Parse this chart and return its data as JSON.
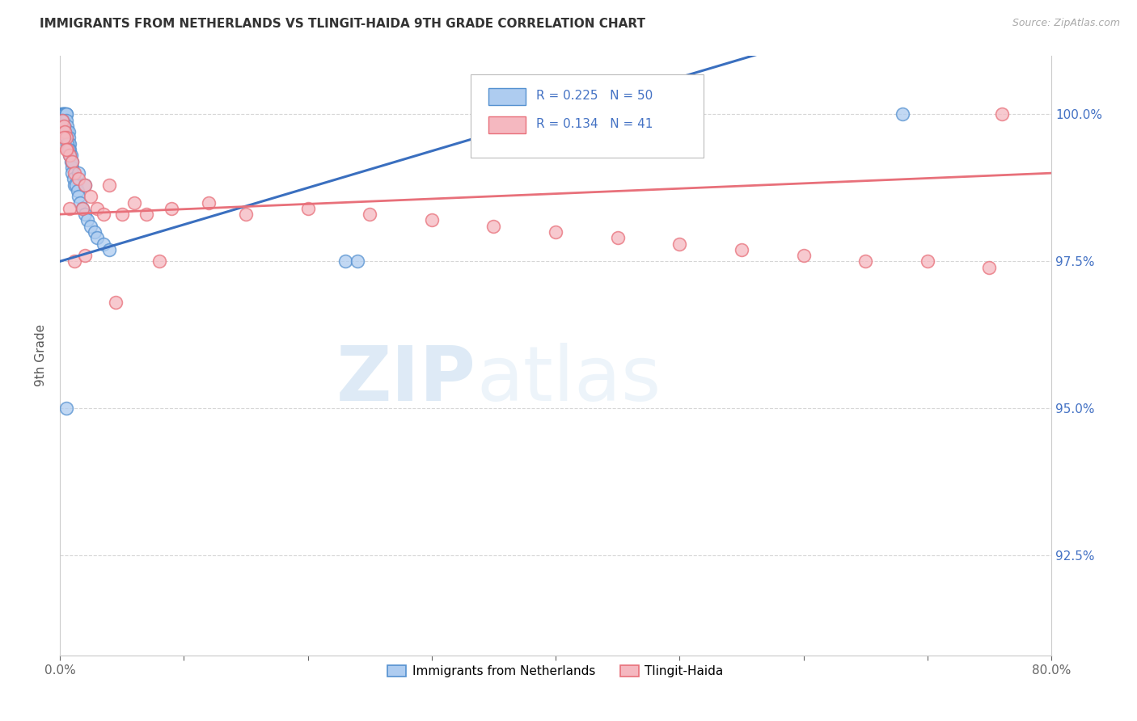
{
  "title": "IMMIGRANTS FROM NETHERLANDS VS TLINGIT-HAIDA 9TH GRADE CORRELATION CHART",
  "source": "Source: ZipAtlas.com",
  "ylabel": "9th Grade",
  "xlim": [
    0.0,
    0.8
  ],
  "ylim": [
    0.908,
    1.01
  ],
  "xtick_positions": [
    0.0,
    0.1,
    0.2,
    0.3,
    0.4,
    0.5,
    0.6,
    0.7,
    0.8
  ],
  "xticklabels": [
    "0.0%",
    "",
    "",
    "",
    "",
    "",
    "",
    "",
    "80.0%"
  ],
  "ytick_positions": [
    0.925,
    0.95,
    0.975,
    1.0
  ],
  "yticklabels": [
    "92.5%",
    "95.0%",
    "97.5%",
    "100.0%"
  ],
  "blue_R": 0.225,
  "blue_N": 50,
  "pink_R": 0.134,
  "pink_N": 41,
  "blue_label": "Immigrants from Netherlands",
  "pink_label": "Tlingit-Haida",
  "blue_color": "#aeccf0",
  "pink_color": "#f5b8c0",
  "blue_edge_color": "#5591d0",
  "pink_edge_color": "#e8707a",
  "blue_line_color": "#3a6fbf",
  "pink_line_color": "#e8707a",
  "blue_x": [
    0.001,
    0.002,
    0.002,
    0.003,
    0.003,
    0.003,
    0.004,
    0.004,
    0.005,
    0.005,
    0.005,
    0.006,
    0.006,
    0.007,
    0.007,
    0.007,
    0.008,
    0.008,
    0.009,
    0.009,
    0.01,
    0.01,
    0.011,
    0.012,
    0.013,
    0.014,
    0.015,
    0.016,
    0.018,
    0.02,
    0.022,
    0.025,
    0.028,
    0.03,
    0.035,
    0.04,
    0.002,
    0.003,
    0.004,
    0.005,
    0.006,
    0.007,
    0.008,
    0.01,
    0.015,
    0.02,
    0.23,
    0.24,
    0.005,
    0.68
  ],
  "blue_y": [
    1.0,
    1.0,
    1.0,
    1.0,
    1.0,
    1.0,
    1.0,
    1.0,
    1.0,
    1.0,
    0.999,
    0.998,
    0.997,
    0.997,
    0.996,
    0.995,
    0.995,
    0.994,
    0.993,
    0.992,
    0.991,
    0.99,
    0.989,
    0.988,
    0.988,
    0.987,
    0.986,
    0.985,
    0.984,
    0.983,
    0.982,
    0.981,
    0.98,
    0.979,
    0.978,
    0.977,
    0.999,
    0.998,
    0.997,
    0.996,
    0.995,
    0.994,
    0.993,
    0.992,
    0.99,
    0.988,
    0.975,
    0.975,
    0.95,
    1.0
  ],
  "pink_x": [
    0.002,
    0.003,
    0.004,
    0.005,
    0.006,
    0.008,
    0.01,
    0.012,
    0.015,
    0.018,
    0.02,
    0.025,
    0.03,
    0.035,
    0.04,
    0.05,
    0.06,
    0.07,
    0.09,
    0.12,
    0.15,
    0.2,
    0.25,
    0.3,
    0.35,
    0.4,
    0.45,
    0.5,
    0.55,
    0.6,
    0.65,
    0.7,
    0.75,
    0.003,
    0.005,
    0.008,
    0.012,
    0.02,
    0.045,
    0.08,
    0.76
  ],
  "pink_y": [
    0.999,
    0.998,
    0.997,
    0.996,
    0.994,
    0.993,
    0.992,
    0.99,
    0.989,
    0.984,
    0.988,
    0.986,
    0.984,
    0.983,
    0.988,
    0.983,
    0.985,
    0.983,
    0.984,
    0.985,
    0.983,
    0.984,
    0.983,
    0.982,
    0.981,
    0.98,
    0.979,
    0.978,
    0.977,
    0.976,
    0.975,
    0.975,
    0.974,
    0.996,
    0.994,
    0.984,
    0.975,
    0.976,
    0.968,
    0.975,
    1.0
  ],
  "watermark_zip": "ZIP",
  "watermark_atlas": "atlas",
  "background_color": "#ffffff",
  "grid_color": "#cccccc",
  "blue_line_x0": 0.0,
  "blue_line_y0": 0.975,
  "blue_line_x1": 0.4,
  "blue_line_y1": 1.0,
  "pink_line_x0": 0.0,
  "pink_line_y0": 0.983,
  "pink_line_x1": 0.8,
  "pink_line_y1": 0.99
}
